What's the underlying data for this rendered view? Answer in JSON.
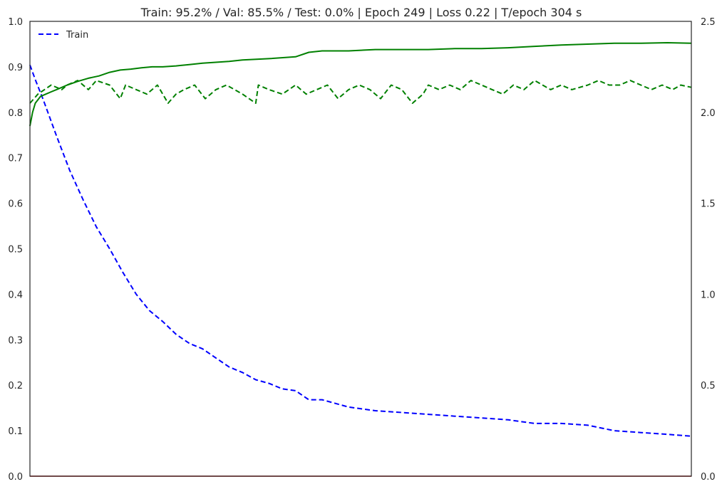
{
  "chart_data": {
    "type": "line",
    "title": "Train: 95.2% / Val: 85.5% / Test: 0.0% | Epoch 249 | Loss 0.22 | T/epoch 304 s",
    "xlabel": "",
    "ylabel": "",
    "y2label": "",
    "xlim": [
      0,
      249
    ],
    "ylim": [
      0.0,
      1.0
    ],
    "y2lim": [
      0.0,
      2.5
    ],
    "yticks": [
      "0.0",
      "0.1",
      "0.2",
      "0.3",
      "0.4",
      "0.5",
      "0.6",
      "0.7",
      "0.8",
      "0.9",
      "1.0"
    ],
    "y2ticks": [
      "0.0",
      "0.5",
      "1.0",
      "1.5",
      "2.0",
      "2.5"
    ],
    "show_xticks": false,
    "grid": false,
    "legend": {
      "placement": "top-left",
      "entries": [
        "Train"
      ]
    },
    "colors": {
      "loss": "#0000ff",
      "accuracy": "#008000",
      "test": "#bf0000",
      "axes": "#262626"
    },
    "series": [
      {
        "key": "train_loss",
        "name": "Train",
        "axis": "right",
        "style": "dashed",
        "color": "#0000ff",
        "x": [
          0,
          2,
          5,
          10,
          15,
          20,
          25,
          30,
          35,
          40,
          45,
          50,
          55,
          60,
          65,
          70,
          75,
          80,
          85,
          90,
          95,
          100,
          105,
          110,
          120,
          130,
          140,
          150,
          160,
          170,
          180,
          190,
          200,
          210,
          220,
          230,
          240,
          249
        ],
        "values": [
          2.26,
          2.18,
          2.07,
          1.87,
          1.68,
          1.52,
          1.37,
          1.25,
          1.12,
          1.0,
          0.91,
          0.85,
          0.78,
          0.73,
          0.7,
          0.65,
          0.6,
          0.57,
          0.53,
          0.51,
          0.48,
          0.47,
          0.42,
          0.42,
          0.38,
          0.36,
          0.35,
          0.34,
          0.33,
          0.32,
          0.31,
          0.29,
          0.29,
          0.28,
          0.25,
          0.24,
          0.23,
          0.22
        ]
      },
      {
        "key": "train_acc",
        "name": "",
        "axis": "left",
        "style": "solid",
        "color": "#008000",
        "x": [
          0,
          1,
          2,
          4,
          6,
          8,
          10,
          14,
          18,
          22,
          26,
          30,
          34,
          38,
          42,
          46,
          50,
          55,
          60,
          65,
          70,
          75,
          80,
          90,
          100,
          105,
          110,
          120,
          130,
          140,
          150,
          160,
          170,
          180,
          190,
          200,
          210,
          220,
          230,
          240,
          249
        ],
        "values": [
          0.77,
          0.8,
          0.82,
          0.835,
          0.84,
          0.845,
          0.85,
          0.86,
          0.868,
          0.875,
          0.88,
          0.888,
          0.893,
          0.895,
          0.898,
          0.9,
          0.9,
          0.902,
          0.905,
          0.908,
          0.91,
          0.912,
          0.915,
          0.918,
          0.922,
          0.932,
          0.935,
          0.935,
          0.938,
          0.938,
          0.938,
          0.94,
          0.94,
          0.942,
          0.945,
          0.948,
          0.95,
          0.952,
          0.952,
          0.953,
          0.952
        ]
      },
      {
        "key": "val_acc",
        "name": "",
        "axis": "left",
        "style": "dashed",
        "color": "#008000",
        "x": [
          0,
          3,
          8,
          12,
          14,
          18,
          22,
          25,
          30,
          34,
          36,
          40,
          44,
          48,
          52,
          55,
          58,
          62,
          66,
          70,
          74,
          80,
          85,
          86,
          90,
          95,
          100,
          104,
          108,
          112,
          116,
          120,
          124,
          128,
          132,
          136,
          140,
          144,
          148,
          150,
          154,
          158,
          162,
          166,
          170,
          174,
          178,
          182,
          186,
          190,
          196,
          200,
          204,
          210,
          214,
          218,
          222,
          226,
          230,
          234,
          238,
          242,
          245,
          249
        ],
        "values": [
          0.82,
          0.84,
          0.86,
          0.85,
          0.86,
          0.87,
          0.85,
          0.87,
          0.86,
          0.83,
          0.86,
          0.85,
          0.84,
          0.86,
          0.82,
          0.84,
          0.85,
          0.86,
          0.83,
          0.85,
          0.86,
          0.84,
          0.82,
          0.86,
          0.85,
          0.84,
          0.86,
          0.84,
          0.85,
          0.86,
          0.83,
          0.85,
          0.86,
          0.85,
          0.83,
          0.86,
          0.85,
          0.82,
          0.84,
          0.86,
          0.85,
          0.86,
          0.85,
          0.87,
          0.86,
          0.85,
          0.84,
          0.86,
          0.85,
          0.87,
          0.85,
          0.86,
          0.85,
          0.86,
          0.87,
          0.86,
          0.86,
          0.87,
          0.86,
          0.85,
          0.86,
          0.85,
          0.86,
          0.855
        ]
      },
      {
        "key": "test_acc",
        "name": "",
        "axis": "left",
        "style": "solid",
        "color": "#bf0000",
        "x": [
          0,
          249
        ],
        "values": [
          0.0,
          0.0
        ]
      }
    ]
  }
}
